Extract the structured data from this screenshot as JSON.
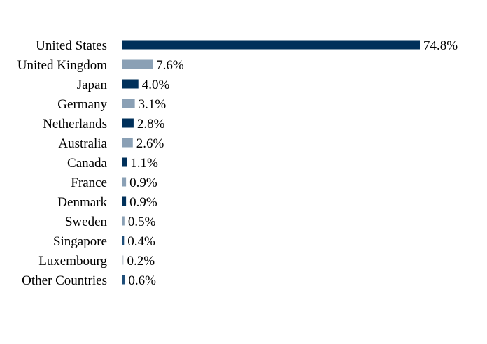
{
  "chart_data": {
    "type": "bar",
    "orientation": "horizontal",
    "categories": [
      "United States",
      "United Kingdom",
      "Japan",
      "Germany",
      "Netherlands",
      "Australia",
      "Canada",
      "France",
      "Denmark",
      "Sweden",
      "Singapore",
      "Luxembourg",
      "Other Countries"
    ],
    "values": [
      74.8,
      7.6,
      4.0,
      3.1,
      2.8,
      2.6,
      1.1,
      0.9,
      0.9,
      0.5,
      0.4,
      0.2,
      0.6
    ],
    "value_labels": [
      "74.8%",
      "7.6%",
      "4.0%",
      "3.1%",
      "2.8%",
      "2.6%",
      "1.1%",
      "0.9%",
      "0.9%",
      "0.5%",
      "0.4%",
      "0.2%",
      "0.6%"
    ],
    "bar_colors": [
      "#00305a",
      "#8aa0b5",
      "#00305a",
      "#8aa0b5",
      "#00305a",
      "#8aa0b5",
      "#00305a",
      "#8aa0b5",
      "#00305a",
      "#8aa0b5",
      "#1f4e79",
      "#c9cfd6",
      "#1f4e79"
    ],
    "xlim": [
      0,
      74.8
    ],
    "grid": false,
    "legend": "none"
  }
}
